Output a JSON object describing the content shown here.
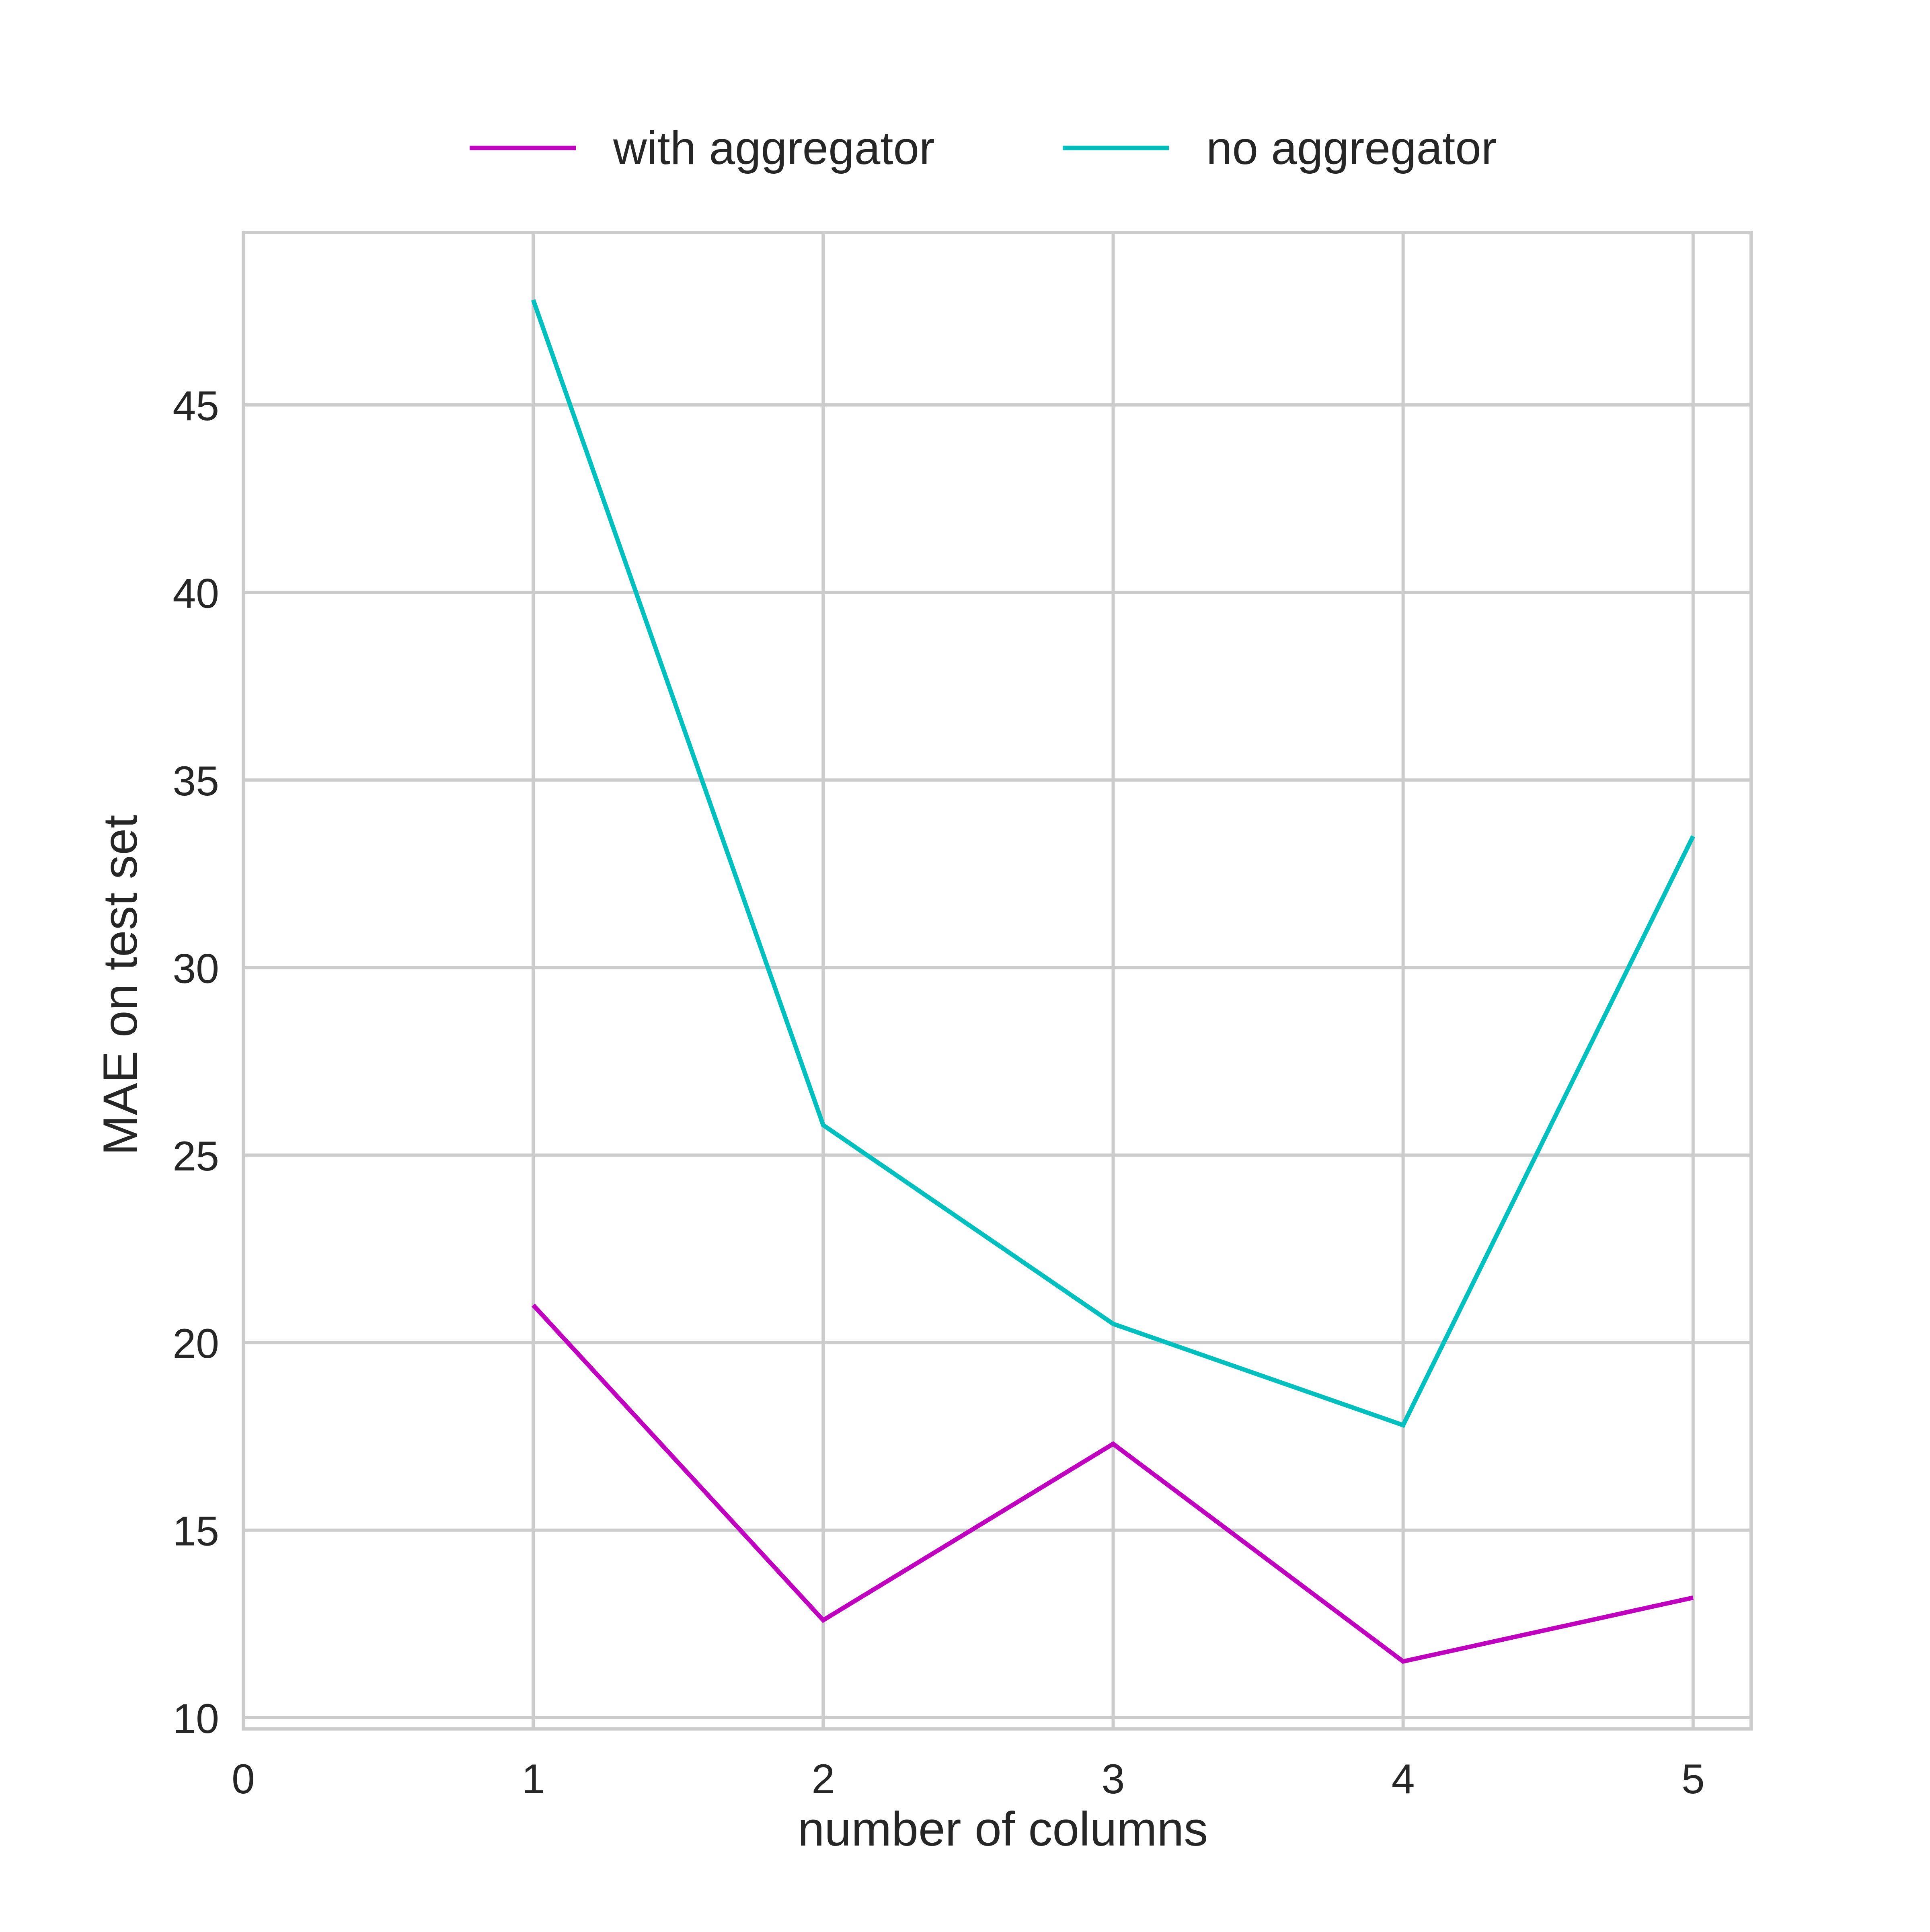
{
  "chart_data": {
    "type": "line",
    "title": "",
    "xlabel": "number of columns",
    "ylabel": "MAE on test set",
    "x": [
      1,
      2,
      3,
      4,
      5
    ],
    "xlim": [
      0,
      5.2
    ],
    "ylim": [
      9.7,
      49.6
    ],
    "xticks": [
      0,
      1,
      2,
      3,
      4,
      5
    ],
    "yticks": [
      10,
      15,
      20,
      25,
      30,
      35,
      40,
      45
    ],
    "grid": true,
    "legend_position": "top-center",
    "series": [
      {
        "name": "with aggregator",
        "color": "#bf00bf",
        "values": [
          21.0,
          12.6,
          17.3,
          11.5,
          13.2
        ]
      },
      {
        "name": "no aggregator",
        "color": "#00bfbf",
        "values": [
          47.8,
          25.8,
          20.5,
          17.8,
          33.5
        ]
      }
    ]
  }
}
